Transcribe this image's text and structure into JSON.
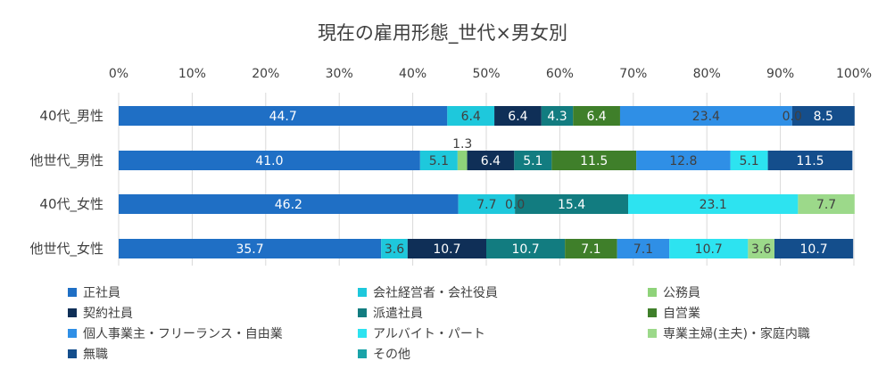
{
  "chart_data": {
    "type": "bar",
    "orientation": "horizontal",
    "stacked": "percent",
    "title": "現在の雇用形態_世代×男女別",
    "xlim": [
      0,
      100
    ],
    "x_ticks": [
      "0%",
      "10%",
      "20%",
      "30%",
      "40%",
      "50%",
      "60%",
      "70%",
      "80%",
      "90%",
      "100%"
    ],
    "categories": [
      "40代_男性",
      "他世代_男性",
      "40代_女性",
      "他世代_女性"
    ],
    "legend_position": "bottom",
    "series": [
      {
        "name": "正社員",
        "color": "#1f6fc5",
        "label_color": "#ffffff",
        "values": [
          44.7,
          41.0,
          46.2,
          35.7
        ],
        "labels": [
          "44.7",
          "41.0",
          "46.2",
          "35.7"
        ]
      },
      {
        "name": "会社経営者・会社役員",
        "color": "#1ec8dc",
        "label_color": "#404040",
        "values": [
          6.4,
          5.1,
          7.7,
          3.6
        ],
        "labels": [
          "6.4",
          "5.1",
          "7.7",
          "3.6"
        ]
      },
      {
        "name": "公務員",
        "color": "#8fd37a",
        "label_color": "#404040",
        "values": [
          0.0,
          1.3,
          0.0,
          0.0
        ],
        "labels": [
          "0.0",
          "1.3",
          "0.0",
          "0.0"
        ]
      },
      {
        "name": "契約社員",
        "color": "#0f2f57",
        "label_color": "#ffffff",
        "values": [
          6.4,
          6.4,
          0.0,
          10.7
        ],
        "labels": [
          "6.4",
          "6.4",
          "0.0",
          "10.7"
        ]
      },
      {
        "name": "派遣社員",
        "color": "#127c80",
        "label_color": "#ffffff",
        "values": [
          4.3,
          5.1,
          15.4,
          10.7
        ],
        "labels": [
          "4.3",
          "5.1",
          "15.4",
          "10.7"
        ]
      },
      {
        "name": "自営業",
        "color": "#3f7f2a",
        "label_color": "#ffffff",
        "values": [
          6.4,
          11.5,
          0.0,
          7.1
        ],
        "labels": [
          "6.4",
          "11.5",
          "0.0",
          "7.1"
        ]
      },
      {
        "name": "個人事業主・フリーランス・自由業",
        "color": "#2f8fe6",
        "label_color": "#404040",
        "values": [
          23.4,
          12.8,
          0.0,
          7.1
        ],
        "labels": [
          "23.4",
          "12.8",
          "0.0",
          "7.1"
        ]
      },
      {
        "name": "アルバイト・パート",
        "color": "#2de3f0",
        "label_color": "#404040",
        "values": [
          0.0,
          5.1,
          23.1,
          10.7
        ],
        "labels": [
          "0.0",
          "5.1",
          "23.1",
          "10.7"
        ]
      },
      {
        "name": "専業主婦(主夫)・家庭内職",
        "color": "#9cd98a",
        "label_color": "#404040",
        "values": [
          0.0,
          0.0,
          7.7,
          3.6
        ],
        "labels": [
          "0.0",
          "0.0",
          "7.7",
          "3.6"
        ]
      },
      {
        "name": "無職",
        "color": "#144e8c",
        "label_color": "#ffffff",
        "values": [
          8.5,
          11.5,
          0.0,
          10.7
        ],
        "labels": [
          "8.5",
          "11.5",
          "0.0",
          "10.7"
        ]
      },
      {
        "name": "その他",
        "color": "#1aa3a8",
        "label_color": "#404040",
        "values": [
          0.0,
          0.0,
          0.0,
          0.0
        ],
        "labels": [
          "0.0",
          "0.0",
          "0.0",
          "0.0"
        ]
      }
    ],
    "visible_labels": [
      [
        "44.7",
        "6.4",
        null,
        "6.4",
        "4.3",
        "6.4",
        "23.4",
        "0.0",
        null,
        "8.5",
        null
      ],
      [
        "41.0",
        "5.1",
        "1.3",
        "6.4",
        "5.1",
        "11.5",
        "12.8",
        "5.1",
        null,
        "11.5",
        null
      ],
      [
        "46.2",
        "7.7",
        null,
        "0.0",
        "15.4",
        null,
        null,
        "23.1",
        "7.7",
        null,
        null
      ],
      [
        "35.7",
        "3.6",
        null,
        "10.7",
        "10.7",
        "7.1",
        "7.1",
        "10.7",
        "3.6",
        "10.7",
        null
      ]
    ]
  }
}
